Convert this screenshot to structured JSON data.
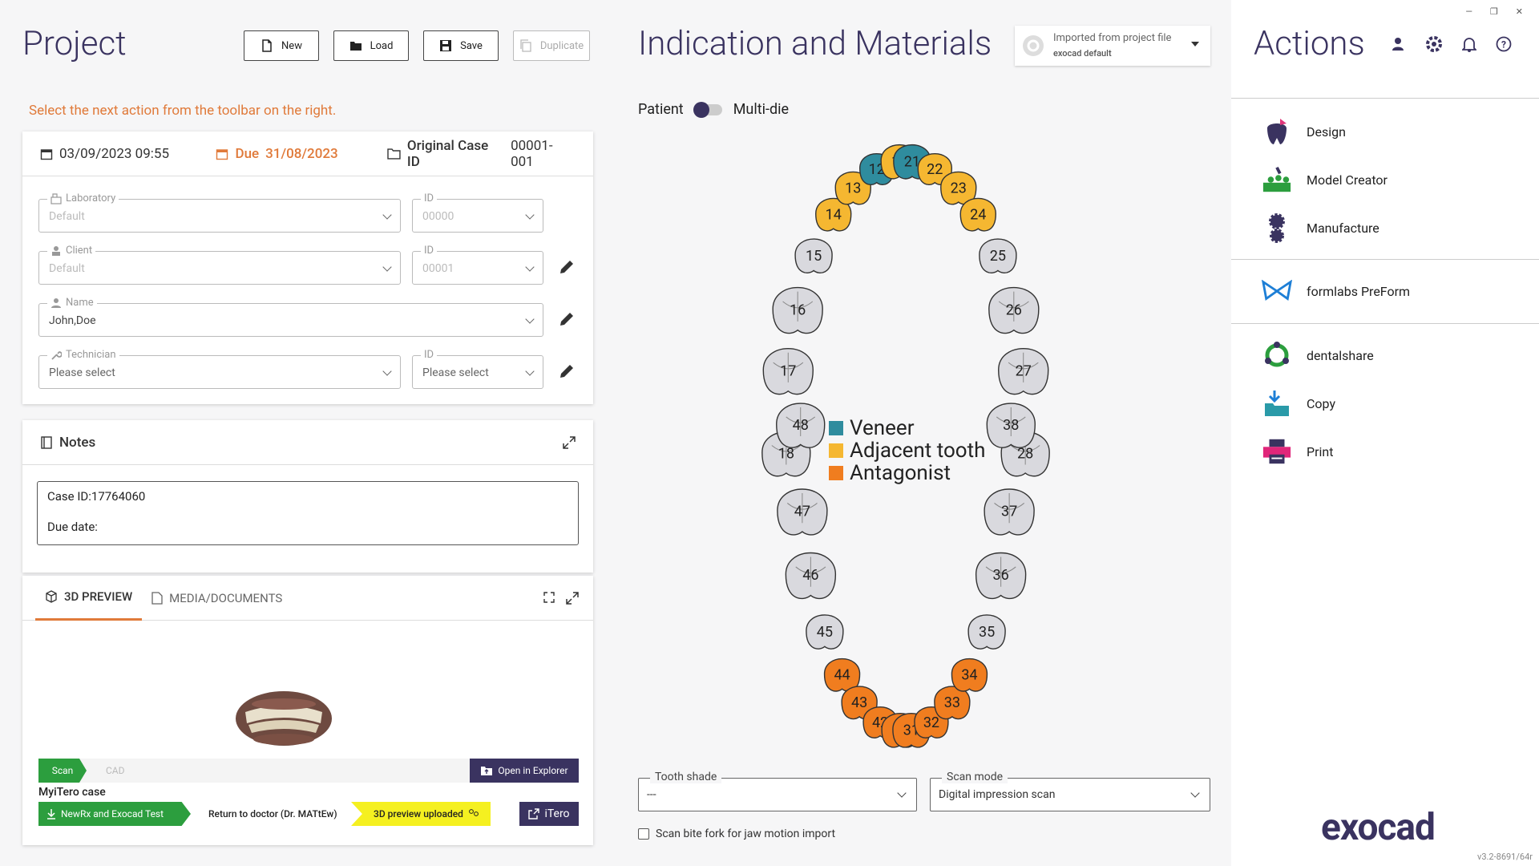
{
  "project": {
    "title": "Project",
    "toolbar": {
      "new": "New",
      "load": "Load",
      "save": "Save",
      "duplicate": "Duplicate"
    },
    "hint": "Select the next action from the toolbar on the right."
  },
  "case": {
    "date": "03/09/2023 09:55",
    "due_label": "Due",
    "due_date": "31/08/2023",
    "original_case_id_label": "Original Case ID",
    "original_case_id": "00001-001",
    "fields": {
      "laboratory": {
        "label": "Laboratory",
        "value": "Default",
        "id_label": "ID",
        "id_value": "00000"
      },
      "client": {
        "label": "Client",
        "value": "Default",
        "id_label": "ID",
        "id_value": "00001"
      },
      "name": {
        "label": "Name",
        "value": "John,Doe"
      },
      "technician": {
        "label": "Technician",
        "value": "Please select",
        "id_label": "ID",
        "id_value": "Please select"
      }
    }
  },
  "notes": {
    "title": "Notes",
    "line1": "Case ID:17764060",
    "line2": "Due date:"
  },
  "preview": {
    "tabs": {
      "preview": "3D PREVIEW",
      "media": "MEDIA/DOCUMENTS"
    },
    "flow": {
      "scan": "Scan",
      "cad": "CAD",
      "open_explorer": "Open in Explorer"
    },
    "case_title": "MyiTero case",
    "steps": {
      "step1": "NewRx and Exocad Test",
      "step2": "Return to doctor (Dr. MATtEw)",
      "step3": "3D preview uploaded",
      "itero": "iTero"
    }
  },
  "indication": {
    "title": "Indication and Materials",
    "import": {
      "line1": "Imported from project file",
      "line2": "exocad default"
    },
    "toggle": {
      "left": "Patient",
      "right": "Multi-die"
    },
    "legend": {
      "veneer": "Veneer",
      "adjacent": "Adjacent tooth",
      "antagonist": "Antagonist"
    },
    "teeth_upper": [
      "18",
      "17",
      "16",
      "15",
      "14",
      "13",
      "12",
      "11",
      "21",
      "22",
      "23",
      "24",
      "25",
      "26",
      "27",
      "28"
    ],
    "teeth_lower": [
      "48",
      "47",
      "46",
      "45",
      "44",
      "43",
      "42",
      "41",
      "31",
      "32",
      "33",
      "34",
      "35",
      "36",
      "37",
      "38"
    ],
    "tooth_shade": {
      "label": "Tooth shade",
      "value": "---"
    },
    "scan_mode": {
      "label": "Scan mode",
      "value": "Digital impression scan"
    },
    "bite_fork": "Scan bite fork for jaw motion import"
  },
  "colors": {
    "veneer": "#2f8c9e",
    "adjacent": "#f5b731",
    "antagonist": "#f07d1f",
    "gray": "#d9d9de",
    "accent": "#e07a3a",
    "brand": "#3a3360"
  },
  "actions": {
    "title": "Actions",
    "items": {
      "design": "Design",
      "model": "Model Creator",
      "manufacture": "Manufacture",
      "formlabs": "formlabs PreForm",
      "dentalshare": "dentalshare",
      "copy": "Copy",
      "print": "Print"
    },
    "brand": "exocad",
    "version": "v3.2-8691/64r"
  }
}
